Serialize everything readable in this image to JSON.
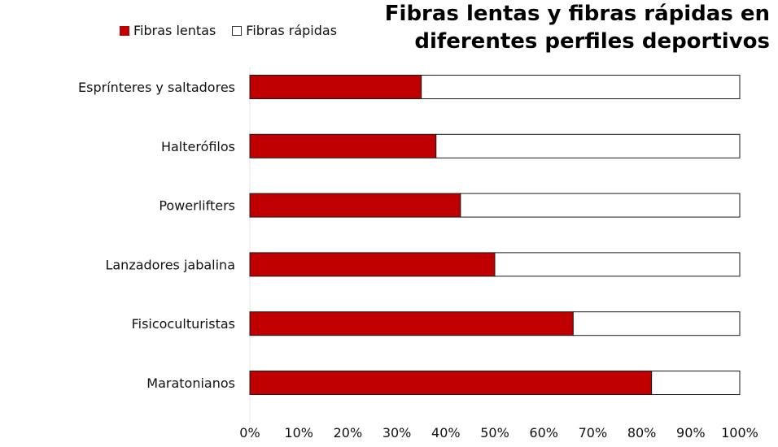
{
  "title_lines": [
    "Fibras lentas y fibras rápidas en",
    "diferentes perfiles deportivos"
  ],
  "legend": [
    {
      "label": "Fibras lentas",
      "color": "#c00000"
    },
    {
      "label": "Fibras rápidas",
      "color": "#ffffff"
    }
  ],
  "chart_data": {
    "type": "bar",
    "orientation": "horizontal",
    "stacked": true,
    "categories": [
      "Esprínteres y saltadores",
      "Halterófilos",
      "Powerlifters",
      "Lanzadores jabalina",
      "Fisicoculturistas",
      "Maratonianos"
    ],
    "series": [
      {
        "name": "Fibras lentas",
        "values": [
          35,
          38,
          43,
          50,
          66,
          82
        ],
        "color": "#c00000"
      },
      {
        "name": "Fibras rápidas",
        "values": [
          65,
          62,
          57,
          50,
          34,
          18
        ],
        "color": "#ffffff"
      }
    ],
    "xlim": [
      0,
      100
    ],
    "xticks": [
      "0%",
      "10%",
      "20%",
      "30%",
      "40%",
      "50%",
      "60%",
      "70%",
      "80%",
      "90%",
      "100%"
    ],
    "grid": false,
    "legend_position": "top-left"
  }
}
